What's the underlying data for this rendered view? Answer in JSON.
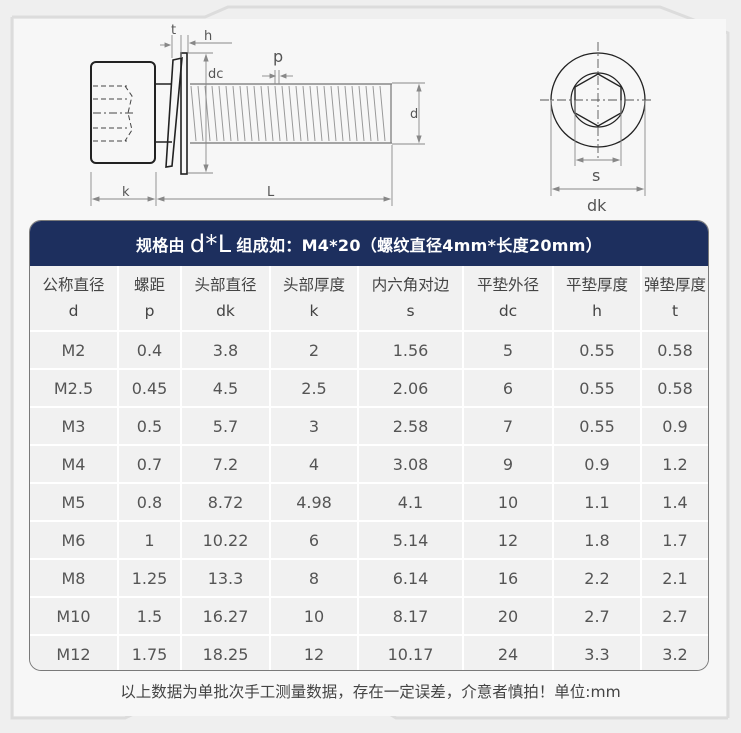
{
  "diagram": {
    "side_view_labels": {
      "t": "t",
      "h": "h",
      "p": "p",
      "dc": "dc",
      "d": "d",
      "k": "k",
      "L": "L"
    },
    "top_view_labels": {
      "s": "s",
      "dk": "dk"
    }
  },
  "table": {
    "title_prefix": "规格由",
    "title_big": "d*L",
    "title_suffix": "组成如：M4*20（螺纹直径4mm*长度20mm）",
    "header_color": "#1d2f5e",
    "columns": [
      {
        "name": "公称直径",
        "symbol": "d"
      },
      {
        "name": "螺距",
        "symbol": "p"
      },
      {
        "name": "头部直径",
        "symbol": "dk"
      },
      {
        "name": "头部厚度",
        "symbol": "k"
      },
      {
        "name": "内六角对边",
        "symbol": "s"
      },
      {
        "name": "平垫外径",
        "symbol": "dc"
      },
      {
        "name": "平垫厚度",
        "symbol": "h"
      },
      {
        "name": "弹垫厚度",
        "symbol": "t"
      }
    ],
    "rows": [
      [
        "M2",
        "0.4",
        "3.8",
        "2",
        "1.56",
        "5",
        "0.55",
        "0.58"
      ],
      [
        "M2.5",
        "0.45",
        "4.5",
        "2.5",
        "2.06",
        "6",
        "0.55",
        "0.58"
      ],
      [
        "M3",
        "0.5",
        "5.7",
        "3",
        "2.58",
        "7",
        "0.55",
        "0.9"
      ],
      [
        "M4",
        "0.7",
        "7.2",
        "4",
        "3.08",
        "9",
        "0.9",
        "1.2"
      ],
      [
        "M5",
        "0.8",
        "8.72",
        "4.98",
        "4.1",
        "10",
        "1.1",
        "1.4"
      ],
      [
        "M6",
        "1",
        "10.22",
        "6",
        "5.14",
        "12",
        "1.8",
        "1.7"
      ],
      [
        "M8",
        "1.25",
        "13.3",
        "8",
        "6.14",
        "16",
        "2.2",
        "2.1"
      ],
      [
        "M10",
        "1.5",
        "16.27",
        "10",
        "8.17",
        "20",
        "2.7",
        "2.7"
      ],
      [
        "M12",
        "1.75",
        "18.25",
        "12",
        "10.17",
        "24",
        "3.3",
        "3.2"
      ]
    ]
  },
  "footer_note": "以上数据为单批次手工测量数据，存在一定误差，介意者慎拍！单位:mm"
}
